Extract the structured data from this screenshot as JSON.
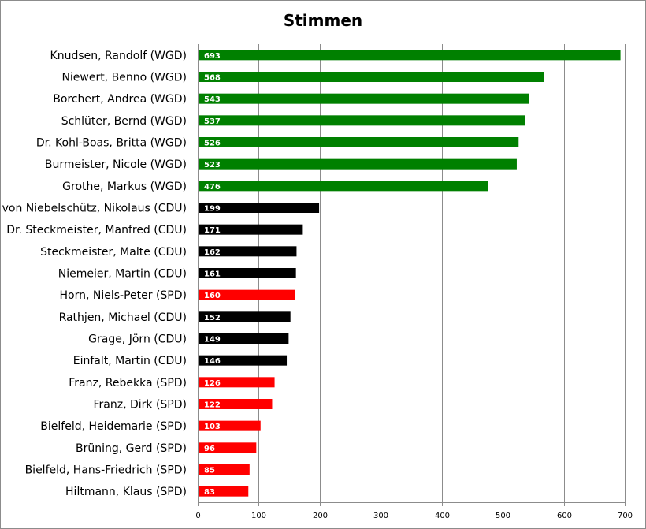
{
  "chart_data": {
    "type": "bar",
    "orientation": "horizontal",
    "title": "Stimmen",
    "xlim": [
      0,
      700
    ],
    "xticks": [
      0,
      100,
      200,
      300,
      400,
      500,
      600,
      700
    ],
    "grid": true,
    "legend": "none",
    "colors": {
      "WGD": "#008000",
      "CDU": "#000000",
      "SPD": "#ff0000"
    },
    "categories": [
      "Knudsen, Randolf (WGD)",
      "Niewert, Benno (WGD)",
      "Borchert, Andrea (WGD)",
      "Schlüter, Bernd (WGD)",
      "Dr. Kohl-Boas, Britta (WGD)",
      "Burmeister, Nicole (WGD)",
      "Grothe, Markus (WGD)",
      "von Niebelschütz, Nikolaus (CDU)",
      "Dr. Steckmeister, Manfred (CDU)",
      "Steckmeister, Malte (CDU)",
      "Niemeier, Martin (CDU)",
      "Horn, Niels-Peter (SPD)",
      "Rathjen, Michael (CDU)",
      "Grage, Jörn (CDU)",
      "Einfalt, Martin (CDU)",
      "Franz, Rebekka (SPD)",
      "Franz, Dirk (SPD)",
      "Bielfeld, Heidemarie (SPD)",
      "Brüning, Gerd (SPD)",
      "Bielfeld, Hans-Friedrich (SPD)",
      "Hiltmann, Klaus (SPD)"
    ],
    "values": [
      693,
      568,
      543,
      537,
      526,
      523,
      476,
      199,
      171,
      162,
      161,
      160,
      152,
      149,
      146,
      126,
      122,
      103,
      96,
      85,
      83
    ],
    "parties": [
      "WGD",
      "WGD",
      "WGD",
      "WGD",
      "WGD",
      "WGD",
      "WGD",
      "CDU",
      "CDU",
      "CDU",
      "CDU",
      "SPD",
      "CDU",
      "CDU",
      "CDU",
      "SPD",
      "SPD",
      "SPD",
      "SPD",
      "SPD",
      "SPD"
    ],
    "data_labels": [
      "693",
      "568",
      "543",
      "537",
      "526",
      "523",
      "476",
      "199",
      "171",
      "162",
      "161",
      "160",
      "152",
      "149",
      "146",
      "126",
      "122",
      "103",
      "96",
      "85",
      "83"
    ]
  }
}
